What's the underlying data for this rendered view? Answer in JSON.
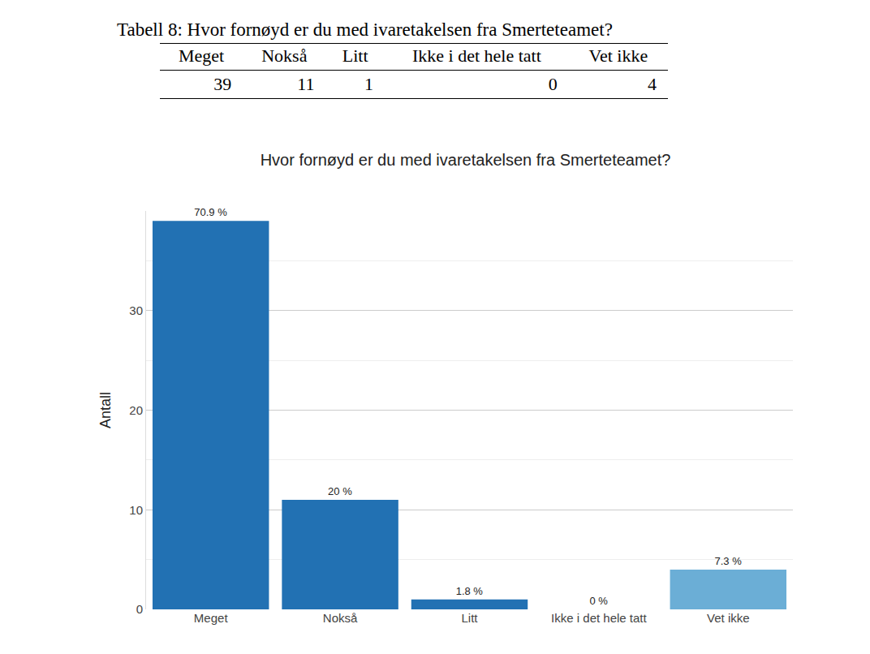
{
  "table": {
    "title": "Tabell 8: Hvor fornøyd er du med ivaretakelsen fra Smerteteamet?",
    "header": [
      "Meget",
      "Nokså",
      "Litt",
      "Ikke i det hele tatt",
      "Vet ikke"
    ],
    "rows": [
      [
        39,
        11,
        1,
        0,
        4
      ]
    ]
  },
  "chart_data": {
    "type": "bar",
    "title": "Hvor fornøyd er du med ivaretakelsen fra Smerteteamet?",
    "y_label": "Antall",
    "categories": [
      "Meget",
      "Nokså",
      "Litt",
      "Ikke i det hele tatt",
      "Vet ikke"
    ],
    "values": [
      39,
      11,
      1,
      0,
      4
    ],
    "value_labels": [
      "70.9 %",
      "20 %",
      "1.8 %",
      "0 %",
      "7.3 %"
    ],
    "data_labels": true,
    "colors": [
      "#2271b3",
      "#2271b3",
      "#2271b3",
      "#2271b3",
      "#6baed6"
    ],
    "ylim": [
      0,
      40
    ],
    "yticks": [
      0,
      10,
      20,
      30
    ],
    "grid": true
  }
}
